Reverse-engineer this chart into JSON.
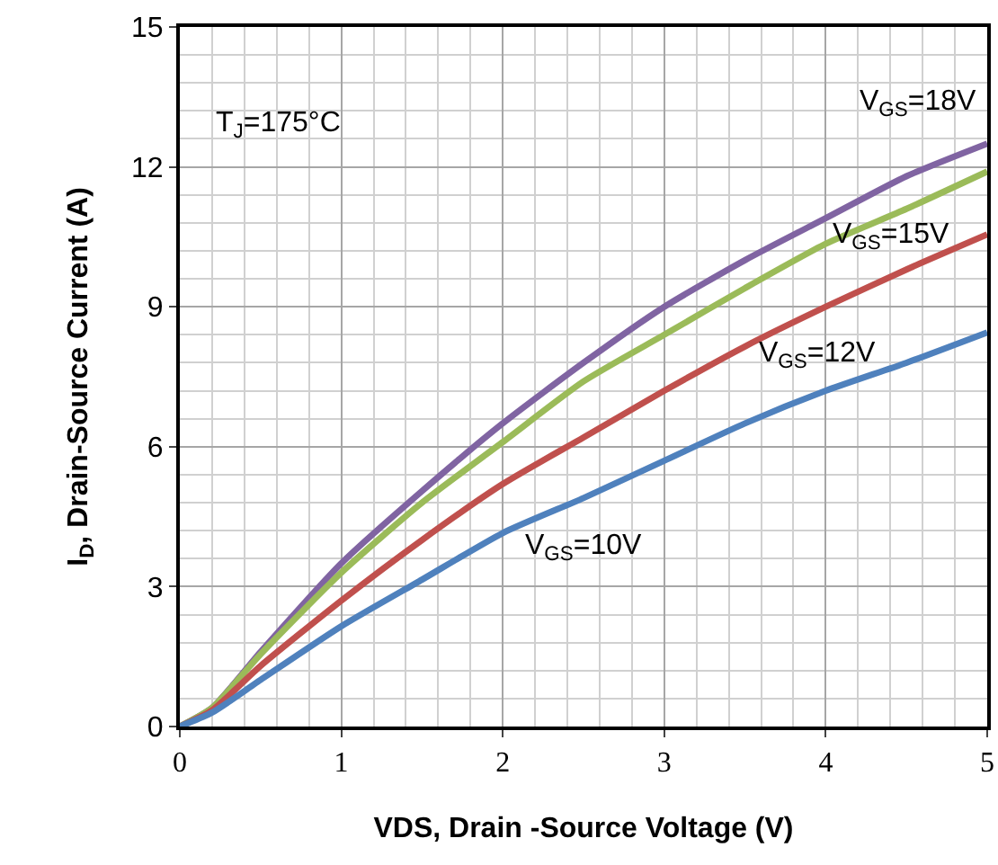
{
  "chart_data": {
    "type": "line",
    "xlabel": "VDS, Drain -Source Voltage (V)",
    "ylabel": "I$_{D}$, Drain-Source Current (A)",
    "annotations": [
      "T$_{J}$=175°C"
    ],
    "x": [
      0,
      0.2,
      0.5,
      1,
      1.5,
      2,
      2.5,
      3,
      3.5,
      4,
      4.5,
      5
    ],
    "series": [
      {
        "name": "V$_{GS}$=18V",
        "color": "#8064a2",
        "values": [
          0,
          0.4,
          1.6,
          3.5,
          5.05,
          6.5,
          7.8,
          9.0,
          10.0,
          10.9,
          11.8,
          12.5
        ]
      },
      {
        "name": "V$_{GS}$=15V",
        "color": "#9bbb59",
        "values": [
          0,
          0.4,
          1.55,
          3.3,
          4.8,
          6.1,
          7.4,
          8.4,
          9.4,
          10.35,
          11.1,
          11.9
        ]
      },
      {
        "name": "V$_{GS}$=12V",
        "color": "#c0504d",
        "values": [
          0,
          0.35,
          1.3,
          2.7,
          4.0,
          5.2,
          6.2,
          7.2,
          8.15,
          9.0,
          9.8,
          10.55
        ]
      },
      {
        "name": "V$_{GS}$=10V",
        "color": "#4f81bd",
        "values": [
          0,
          0.3,
          1.0,
          2.15,
          3.15,
          4.15,
          4.9,
          5.7,
          6.5,
          7.2,
          7.8,
          8.45
        ]
      }
    ],
    "xlim": [
      0,
      5
    ],
    "xticks": [
      0,
      1,
      2,
      3,
      4,
      5
    ],
    "ylim": [
      0,
      15
    ],
    "yticks": [
      0,
      3,
      6,
      9,
      12,
      15
    ],
    "grid": true,
    "legend": false,
    "marker": "none",
    "line_style": "solid"
  }
}
